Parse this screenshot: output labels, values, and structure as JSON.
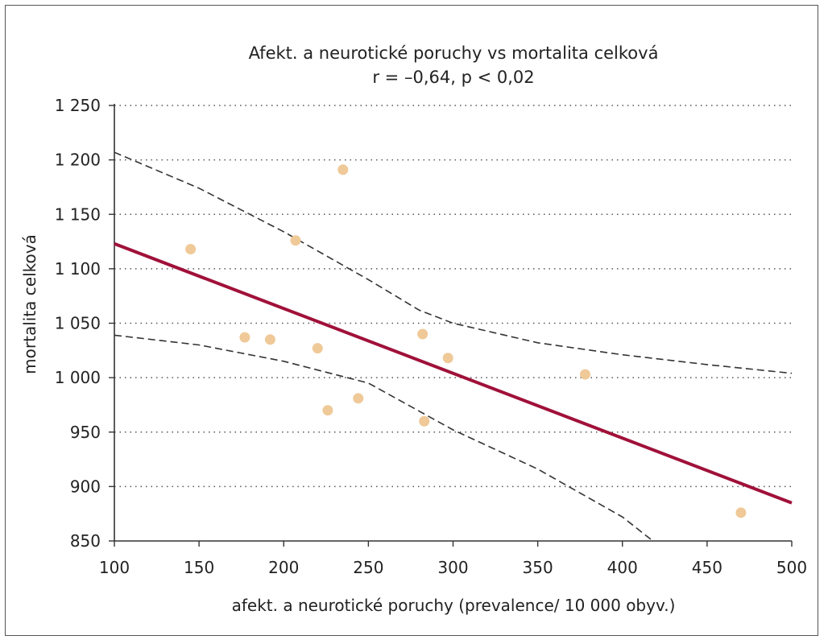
{
  "chart_data": {
    "type": "scatter",
    "title": "Afekt. a neurotické poruchy vs mortalita celková",
    "subtitle": "r = –0,64, p < 0,02",
    "xlabel": "afekt. a neurotické poruchy (prevalence/ 10 000 obyv.)",
    "ylabel": "mortalita celková",
    "xlim": [
      100,
      500
    ],
    "ylim": [
      850,
      1250
    ],
    "x_ticks": [
      100,
      150,
      200,
      250,
      300,
      350,
      400,
      450,
      500
    ],
    "y_ticks": [
      850,
      900,
      950,
      1000,
      1050,
      1100,
      1150,
      1200,
      1250
    ],
    "x_tick_labels": [
      "100",
      "150",
      "200",
      "250",
      "300",
      "350",
      "400",
      "450",
      "500"
    ],
    "y_tick_labels": [
      "850",
      "900",
      "950",
      "1 000",
      "1 050",
      "1 100",
      "1 150",
      "1 200",
      "1 250"
    ],
    "grid": "horizontal-dotted",
    "points": [
      {
        "x": 145,
        "y": 1118
      },
      {
        "x": 177,
        "y": 1037
      },
      {
        "x": 192,
        "y": 1035
      },
      {
        "x": 207,
        "y": 1126
      },
      {
        "x": 220,
        "y": 1027
      },
      {
        "x": 226,
        "y": 970
      },
      {
        "x": 235,
        "y": 1191
      },
      {
        "x": 244,
        "y": 981
      },
      {
        "x": 282,
        "y": 1040
      },
      {
        "x": 283,
        "y": 960
      },
      {
        "x": 297,
        "y": 1018
      },
      {
        "x": 378,
        "y": 1003
      },
      {
        "x": 470,
        "y": 876
      }
    ],
    "regression_line": [
      {
        "x": 100,
        "y": 1123
      },
      {
        "x": 500,
        "y": 885
      }
    ],
    "ci_upper": [
      {
        "x": 100,
        "y": 1207
      },
      {
        "x": 150,
        "y": 1174
      },
      {
        "x": 200,
        "y": 1134
      },
      {
        "x": 250,
        "y": 1090
      },
      {
        "x": 280,
        "y": 1062
      },
      {
        "x": 300,
        "y": 1050
      },
      {
        "x": 350,
        "y": 1032
      },
      {
        "x": 400,
        "y": 1021
      },
      {
        "x": 450,
        "y": 1012
      },
      {
        "x": 500,
        "y": 1004
      }
    ],
    "ci_lower": [
      {
        "x": 100,
        "y": 1039
      },
      {
        "x": 150,
        "y": 1030
      },
      {
        "x": 200,
        "y": 1015
      },
      {
        "x": 250,
        "y": 995
      },
      {
        "x": 300,
        "y": 952
      },
      {
        "x": 350,
        "y": 916
      },
      {
        "x": 400,
        "y": 872
      },
      {
        "x": 418,
        "y": 850
      }
    ],
    "colors": {
      "points": "#EFC998",
      "regression": "#A0113A",
      "ci": "#333333",
      "grid": "#555555",
      "axis": "#333333"
    }
  }
}
